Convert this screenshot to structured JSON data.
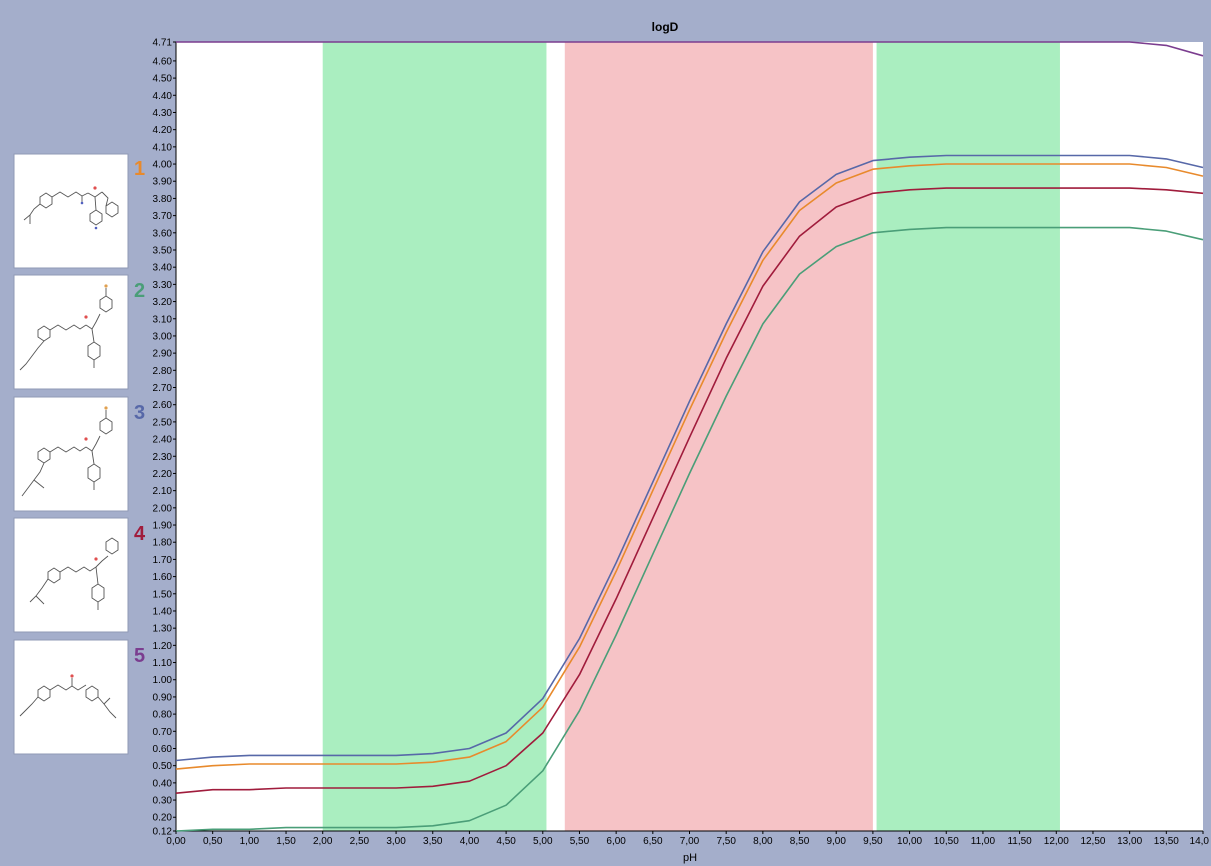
{
  "colors": {
    "frame_bg": "#a4aecb",
    "plot_bg": "#ffffff",
    "green_band": "#aaeec0",
    "red_band": "#f6c3c6"
  },
  "compounds": [
    {
      "number": "1",
      "color": "#e88a2c",
      "icon": "chemical-structure-1"
    },
    {
      "number": "2",
      "color": "#4a9e78",
      "icon": "chemical-structure-2"
    },
    {
      "number": "3",
      "color": "#5768a8",
      "icon": "chemical-structure-3"
    },
    {
      "number": "4",
      "color": "#a01c3c",
      "icon": "chemical-structure-4"
    },
    {
      "number": "5",
      "color": "#7b3d8f",
      "icon": "chemical-structure-5"
    }
  ],
  "chart_data": {
    "type": "line",
    "title": "logD",
    "xlabel": "pH",
    "ylabel": "",
    "xlim": [
      0,
      14
    ],
    "ylim": [
      0.12,
      4.71
    ],
    "x_ticks": [
      "0,00",
      "0,50",
      "1,00",
      "1,50",
      "2,00",
      "2,50",
      "3,00",
      "3,50",
      "4,00",
      "4,50",
      "5,00",
      "5,50",
      "6,00",
      "6,50",
      "7,00",
      "7,50",
      "8,00",
      "8,50",
      "9,00",
      "9,50",
      "10,00",
      "10,50",
      "11,00",
      "11,50",
      "12,00",
      "12,50",
      "13,00",
      "13,50",
      "14,0"
    ],
    "y_ticks": [
      "4.71",
      "4.60",
      "4.50",
      "4.40",
      "4.30",
      "4.20",
      "4.10",
      "4.00",
      "3.90",
      "3.80",
      "3.70",
      "3.60",
      "3.50",
      "3.40",
      "3.30",
      "3.20",
      "3.10",
      "3.00",
      "2.90",
      "2.80",
      "2.70",
      "2.60",
      "2.50",
      "2.40",
      "2.30",
      "2.20",
      "2.10",
      "2.00",
      "1.90",
      "1.80",
      "1.70",
      "1.60",
      "1.50",
      "1.40",
      "1.30",
      "1.20",
      "1.10",
      "1.00",
      "0.90",
      "0.80",
      "0.70",
      "0.60",
      "0.50",
      "0.40",
      "0.30",
      "0.20",
      "0.12"
    ],
    "bands": [
      {
        "x_from": 2.0,
        "x_to": 5.05,
        "color": "#aaeec0"
      },
      {
        "x_from": 5.3,
        "x_to": 9.5,
        "color": "#f6c3c6"
      },
      {
        "x_from": 9.55,
        "x_to": 12.05,
        "color": "#aaeec0"
      }
    ],
    "x": [
      0,
      0.5,
      1,
      1.5,
      2,
      2.5,
      3,
      3.5,
      4,
      4.5,
      5,
      5.5,
      6,
      6.5,
      7,
      7.5,
      8,
      8.5,
      9,
      9.5,
      10,
      10.5,
      11,
      11.5,
      12,
      12.5,
      13,
      13.5,
      14
    ],
    "series": [
      {
        "name": "1",
        "color": "#e88a2c",
        "values": [
          0.48,
          0.5,
          0.51,
          0.51,
          0.51,
          0.51,
          0.51,
          0.52,
          0.55,
          0.64,
          0.84,
          1.19,
          1.63,
          2.1,
          2.57,
          3.02,
          3.44,
          3.73,
          3.89,
          3.97,
          3.99,
          4.0,
          4.0,
          4.0,
          4.0,
          4.0,
          4.0,
          3.98,
          3.93
        ]
      },
      {
        "name": "2",
        "color": "#4a9e78",
        "values": [
          0.12,
          0.13,
          0.13,
          0.14,
          0.14,
          0.14,
          0.14,
          0.15,
          0.18,
          0.27,
          0.47,
          0.82,
          1.26,
          1.73,
          2.2,
          2.65,
          3.07,
          3.36,
          3.52,
          3.6,
          3.62,
          3.63,
          3.63,
          3.63,
          3.63,
          3.63,
          3.63,
          3.61,
          3.56
        ]
      },
      {
        "name": "3",
        "color": "#5768a8",
        "values": [
          0.53,
          0.55,
          0.56,
          0.56,
          0.56,
          0.56,
          0.56,
          0.57,
          0.6,
          0.69,
          0.89,
          1.24,
          1.68,
          2.15,
          2.62,
          3.07,
          3.49,
          3.78,
          3.94,
          4.02,
          4.04,
          4.05,
          4.05,
          4.05,
          4.05,
          4.05,
          4.05,
          4.03,
          3.98
        ]
      },
      {
        "name": "4",
        "color": "#a01c3c",
        "values": [
          0.34,
          0.36,
          0.36,
          0.37,
          0.37,
          0.37,
          0.37,
          0.38,
          0.41,
          0.5,
          0.69,
          1.03,
          1.47,
          1.94,
          2.41,
          2.87,
          3.29,
          3.58,
          3.75,
          3.83,
          3.85,
          3.86,
          3.86,
          3.86,
          3.86,
          3.86,
          3.86,
          3.85,
          3.83
        ]
      },
      {
        "name": "5",
        "color": "#7b3d8f",
        "values": [
          4.71,
          4.71,
          4.71,
          4.71,
          4.71,
          4.71,
          4.71,
          4.71,
          4.71,
          4.71,
          4.71,
          4.71,
          4.71,
          4.71,
          4.71,
          4.71,
          4.71,
          4.71,
          4.71,
          4.71,
          4.71,
          4.71,
          4.71,
          4.71,
          4.71,
          4.71,
          4.71,
          4.69,
          4.63
        ]
      }
    ]
  }
}
